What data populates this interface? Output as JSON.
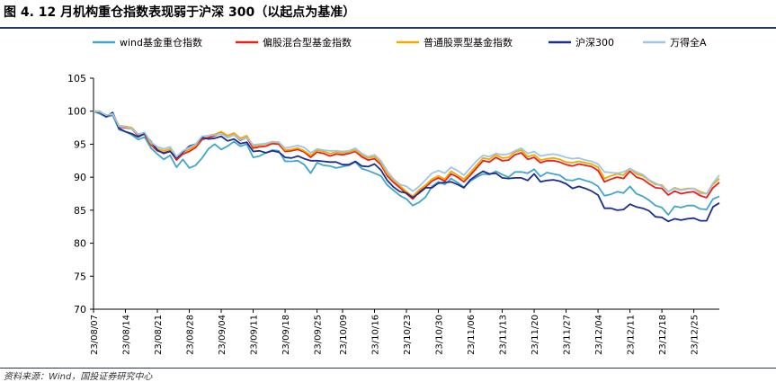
{
  "figure": {
    "title": "图 4. 12 月机构重仓指数表现弱于沪深 300（以起点为基准）",
    "source": "资料来源：Wind，国投证券研究中心"
  },
  "colors": {
    "title_rule": "#1f3864",
    "axis": "#000000"
  },
  "chart_data": {
    "type": "line",
    "xlabel": "",
    "ylabel": "",
    "ylim": [
      70,
      105
    ],
    "yticks": [
      70,
      75,
      80,
      85,
      90,
      95,
      100,
      105
    ],
    "grid": false,
    "legend_position": "top",
    "x_tick_labels": [
      "23/08/07",
      "23/08/14",
      "23/08/21",
      "23/08/28",
      "23/09/04",
      "23/09/11",
      "23/09/18",
      "23/09/25",
      "23/10/02",
      "23/10/09",
      "23/10/16",
      "23/10/23",
      "23/10/30",
      "23/11/06",
      "23/11/13",
      "23/11/20",
      "23/11/27",
      "23/12/04",
      "23/12/11",
      "23/12/18",
      "23/12/25"
    ],
    "x": [
      "23/08/07",
      "23/08/08",
      "23/08/09",
      "23/08/10",
      "23/08/11",
      "23/08/14",
      "23/08/15",
      "23/08/16",
      "23/08/17",
      "23/08/18",
      "23/08/21",
      "23/08/22",
      "23/08/23",
      "23/08/24",
      "23/08/25",
      "23/08/28",
      "23/08/29",
      "23/08/30",
      "23/08/31",
      "23/09/01",
      "23/09/04",
      "23/09/05",
      "23/09/06",
      "23/09/07",
      "23/09/08",
      "23/09/11",
      "23/09/12",
      "23/09/13",
      "23/09/14",
      "23/09/15",
      "23/09/18",
      "23/09/19",
      "23/09/20",
      "23/09/21",
      "23/09/22",
      "23/09/25",
      "23/09/26",
      "23/09/27",
      "23/09/28",
      "23/10/09",
      "23/10/10",
      "23/10/11",
      "23/10/12",
      "23/10/13",
      "23/10/16",
      "23/10/17",
      "23/10/18",
      "23/10/19",
      "23/10/20",
      "23/10/23",
      "23/10/24",
      "23/10/25",
      "23/10/26",
      "23/10/27",
      "23/10/30",
      "23/10/31",
      "23/11/01",
      "23/11/02",
      "23/11/03",
      "23/11/06",
      "23/11/07",
      "23/11/08",
      "23/11/09",
      "23/11/10",
      "23/11/13",
      "23/11/14",
      "23/11/15",
      "23/11/16",
      "23/11/17",
      "23/11/20",
      "23/11/21",
      "23/11/22",
      "23/11/23",
      "23/11/24",
      "23/11/27",
      "23/11/28",
      "23/11/29",
      "23/11/30",
      "23/12/01",
      "23/12/04",
      "23/12/05",
      "23/12/06",
      "23/12/07",
      "23/12/08",
      "23/12/11",
      "23/12/12",
      "23/12/13",
      "23/12/14",
      "23/12/15",
      "23/12/18",
      "23/12/19",
      "23/12/20",
      "23/12/21",
      "23/12/22",
      "23/12/25",
      "23/12/26",
      "23/12/27",
      "23/12/28",
      "23/12/29"
    ],
    "series": [
      {
        "name": "wind基金重仓指数",
        "color": "#41a6c9",
        "values": [
          100,
          99.6,
          99.1,
          99.4,
          97.2,
          96.9,
          96.4,
          95.7,
          96.1,
          94.4,
          93.5,
          92.7,
          93.3,
          91.5,
          92.7,
          91.4,
          91.8,
          92.9,
          94.3,
          95.0,
          94.2,
          94.7,
          95.4,
          94.7,
          95.0,
          93.0,
          93.2,
          93.7,
          94.1,
          94.0,
          92.4,
          92.4,
          92.5,
          91.9,
          90.6,
          92.2,
          91.8,
          91.7,
          91.4,
          91.6,
          91.8,
          92.3,
          91.3,
          91.0,
          90.6,
          90.2,
          88.8,
          88.0,
          87.2,
          86.7,
          85.7,
          86.2,
          87.0,
          88.6,
          89.3,
          88.9,
          89.8,
          89.2,
          88.5,
          89.4,
          90.0,
          90.5,
          90.4,
          90.9,
          90.4,
          90.0,
          90.8,
          90.8,
          90.6,
          91.2,
          90.1,
          90.7,
          90.5,
          90.3,
          89.6,
          89.5,
          89.8,
          89.5,
          89.2,
          88.6,
          87.2,
          87.4,
          87.8,
          87.6,
          88.6,
          87.5,
          87.1,
          86.5,
          85.7,
          85.4,
          84.3,
          85.6,
          85.4,
          85.7,
          85.7,
          85.2,
          85.1,
          86.7,
          87.1
        ]
      },
      {
        "name": "偏股混合型基金指数",
        "color": "#e8201b",
        "values": [
          100,
          99.9,
          99.2,
          99.6,
          97.6,
          97.5,
          97.3,
          96.3,
          96.5,
          94.9,
          94.0,
          93.7,
          94.0,
          92.6,
          93.5,
          93.9,
          94.5,
          95.7,
          96.0,
          96.3,
          96.7,
          96.0,
          96.4,
          95.6,
          96.0,
          94.4,
          94.6,
          94.7,
          95.1,
          95.0,
          93.9,
          94.0,
          94.2,
          93.8,
          93.0,
          93.8,
          93.6,
          93.2,
          93.5,
          93.4,
          93.6,
          93.9,
          93.1,
          92.6,
          92.8,
          91.9,
          90.2,
          89.2,
          88.4,
          87.5,
          86.7,
          87.8,
          88.5,
          89.4,
          89.9,
          89.4,
          90.5,
          90.0,
          89.3,
          90.3,
          91.4,
          92.5,
          92.3,
          93.0,
          92.5,
          92.6,
          93.4,
          93.7,
          92.7,
          93.0,
          92.2,
          92.5,
          92.5,
          92.3,
          91.9,
          91.7,
          92.0,
          91.8,
          91.6,
          91.0,
          89.3,
          89.7,
          90.0,
          89.8,
          90.9,
          90.0,
          89.7,
          89.0,
          88.4,
          88.3,
          87.3,
          87.9,
          87.5,
          87.7,
          87.8,
          87.2,
          86.9,
          88.4,
          89.2
        ]
      },
      {
        "name": "普通股票型基金指数",
        "color": "#f2a900",
        "values": [
          100,
          100.0,
          99.3,
          99.7,
          97.8,
          97.7,
          97.5,
          96.5,
          96.7,
          95.1,
          94.3,
          94.0,
          94.3,
          92.9,
          93.8,
          94.2,
          94.8,
          96.0,
          96.3,
          96.5,
          96.9,
          96.3,
          96.7,
          95.9,
          96.3,
          94.7,
          94.9,
          95.0,
          95.3,
          95.3,
          94.1,
          94.2,
          94.4,
          94.0,
          93.3,
          94.1,
          93.9,
          93.6,
          93.8,
          93.7,
          93.8,
          94.1,
          93.4,
          92.9,
          93.1,
          92.2,
          90.5,
          89.5,
          88.7,
          87.8,
          87.1,
          88.1,
          88.8,
          89.7,
          90.2,
          89.7,
          90.9,
          90.3,
          89.7,
          90.7,
          91.8,
          92.9,
          92.7,
          93.4,
          92.9,
          93.0,
          93.8,
          94.1,
          93.1,
          93.4,
          92.6,
          92.8,
          92.9,
          92.7,
          92.3,
          92.2,
          92.4,
          92.2,
          92.0,
          91.5,
          89.8,
          90.2,
          90.5,
          90.3,
          91.3,
          90.5,
          90.2,
          89.5,
          88.9,
          88.8,
          87.8,
          88.4,
          88.1,
          88.3,
          88.3,
          87.8,
          87.5,
          88.9,
          89.8
        ]
      },
      {
        "name": "沪深300",
        "color": "#1a2f8e",
        "values": [
          100,
          99.8,
          99.2,
          99.8,
          97.4,
          96.9,
          96.6,
          96.1,
          96.6,
          95.4,
          94.1,
          93.6,
          93.9,
          92.9,
          93.8,
          94.7,
          95.0,
          96.0,
          95.8,
          95.9,
          96.2,
          95.5,
          95.8,
          95.1,
          95.3,
          93.9,
          94.0,
          93.7,
          94.0,
          93.8,
          93.0,
          92.9,
          93.2,
          92.8,
          92.5,
          92.5,
          92.4,
          92.3,
          92.3,
          91.9,
          91.9,
          92.4,
          91.7,
          91.6,
          92.0,
          91.1,
          89.5,
          88.5,
          87.8,
          87.6,
          86.9,
          87.6,
          88.4,
          88.4,
          89.1,
          89.2,
          89.3,
          88.9,
          88.4,
          89.6,
          90.3,
          90.9,
          90.5,
          90.6,
          89.9,
          89.8,
          89.9,
          89.9,
          89.5,
          90.5,
          89.3,
          89.5,
          89.6,
          89.4,
          89.0,
          88.3,
          88.6,
          88.3,
          87.9,
          87.3,
          85.3,
          85.3,
          85.0,
          85.1,
          85.9,
          85.5,
          85.3,
          84.9,
          84.0,
          83.9,
          83.3,
          83.7,
          83.5,
          83.7,
          83.8,
          83.4,
          83.4,
          85.5,
          86.1
        ]
      },
      {
        "name": "万得全A",
        "color": "#9fc6e2",
        "values": [
          100,
          99.9,
          99.4,
          99.6,
          97.7,
          97.6,
          97.3,
          96.5,
          96.8,
          95.3,
          94.6,
          94.3,
          94.6,
          93.1,
          94.0,
          94.5,
          95.0,
          96.2,
          96.3,
          96.4,
          96.6,
          96.0,
          96.4,
          95.7,
          96.0,
          94.9,
          95.0,
          95.1,
          95.4,
          95.3,
          94.4,
          94.6,
          94.8,
          94.5,
          93.7,
          94.3,
          94.1,
          94.0,
          94.0,
          93.9,
          94.0,
          94.4,
          93.6,
          93.1,
          93.4,
          92.5,
          90.9,
          89.7,
          88.9,
          88.6,
          87.9,
          88.6,
          89.6,
          90.6,
          91.0,
          90.6,
          91.5,
          91.0,
          90.3,
          91.4,
          92.5,
          93.3,
          93.1,
          93.6,
          93.4,
          93.5,
          94.0,
          94.4,
          93.6,
          93.9,
          93.2,
          93.4,
          93.5,
          93.3,
          93.0,
          92.8,
          92.9,
          92.6,
          92.4,
          92.0,
          90.8,
          90.7,
          90.6,
          90.8,
          91.3,
          90.8,
          90.4,
          89.6,
          89.1,
          88.6,
          87.8,
          88.3,
          88.0,
          88.2,
          88.3,
          87.5,
          87.5,
          89.1,
          90.3
        ]
      }
    ]
  }
}
